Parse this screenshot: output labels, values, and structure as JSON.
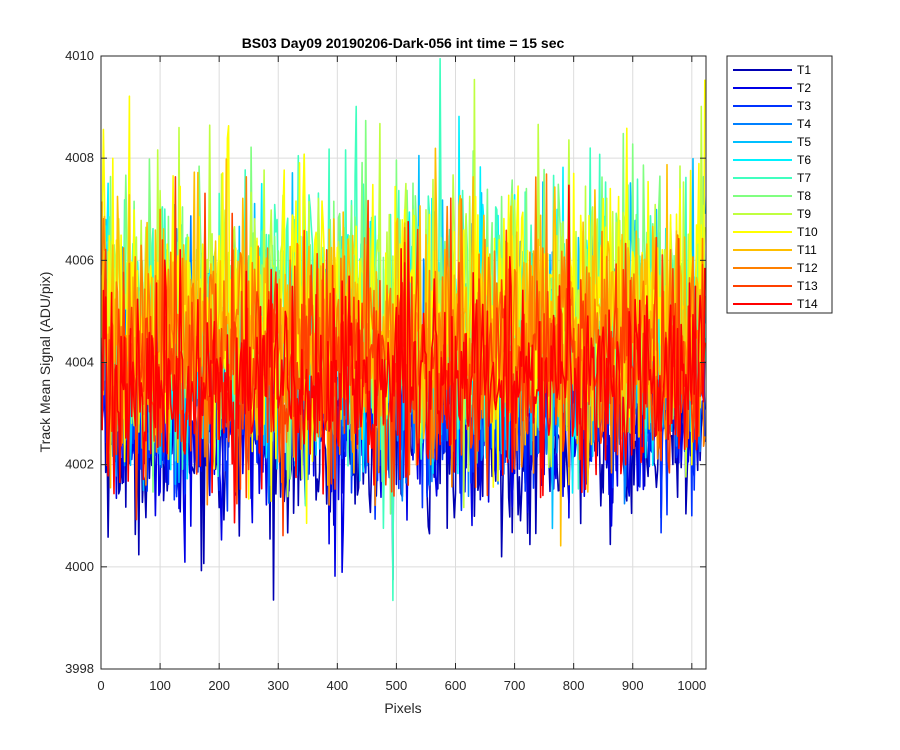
{
  "chart_data": {
    "type": "line",
    "title": "BS03 Day09 20190206-Dark-056 int time = 15 sec",
    "xlabel": "Pixels",
    "ylabel": "Track Mean Signal (ADU/pix)",
    "xlim": [
      0,
      1024
    ],
    "ylim": [
      3998,
      4010
    ],
    "xticks": [
      0,
      100,
      200,
      300,
      400,
      500,
      600,
      700,
      800,
      900,
      1000
    ],
    "yticks": [
      3998,
      4000,
      4002,
      4004,
      4006,
      4008,
      4010
    ],
    "grid": true,
    "legend_position": "outside-top-right",
    "series": [
      {
        "name": "T1",
        "color": "#0000b3",
        "mean": 4002.5,
        "spread": 0.9
      },
      {
        "name": "T2",
        "color": "#0000e6",
        "mean": 4002.8,
        "spread": 0.9
      },
      {
        "name": "T3",
        "color": "#0033ff",
        "mean": 4003.3,
        "spread": 1.0
      },
      {
        "name": "T4",
        "color": "#0080ff",
        "mean": 4003.8,
        "spread": 1.1
      },
      {
        "name": "T5",
        "color": "#00bfff",
        "mean": 4004.2,
        "spread": 1.2
      },
      {
        "name": "T6",
        "color": "#00f2ff",
        "mean": 4004.5,
        "spread": 1.2
      },
      {
        "name": "T7",
        "color": "#40ffbf",
        "mean": 4004.8,
        "spread": 1.3
      },
      {
        "name": "T8",
        "color": "#80ff80",
        "mean": 4005.0,
        "spread": 1.3
      },
      {
        "name": "T9",
        "color": "#bfff40",
        "mean": 4005.0,
        "spread": 1.3
      },
      {
        "name": "T10",
        "color": "#ffff00",
        "mean": 4004.9,
        "spread": 1.3
      },
      {
        "name": "T11",
        "color": "#ffbf00",
        "mean": 4004.6,
        "spread": 1.2
      },
      {
        "name": "T12",
        "color": "#ff8000",
        "mean": 4004.3,
        "spread": 1.2
      },
      {
        "name": "T13",
        "color": "#ff4000",
        "mean": 4004.0,
        "spread": 1.1
      },
      {
        "name": "T14",
        "color": "#ff0000",
        "mean": 4003.6,
        "spread": 1.0
      }
    ]
  }
}
